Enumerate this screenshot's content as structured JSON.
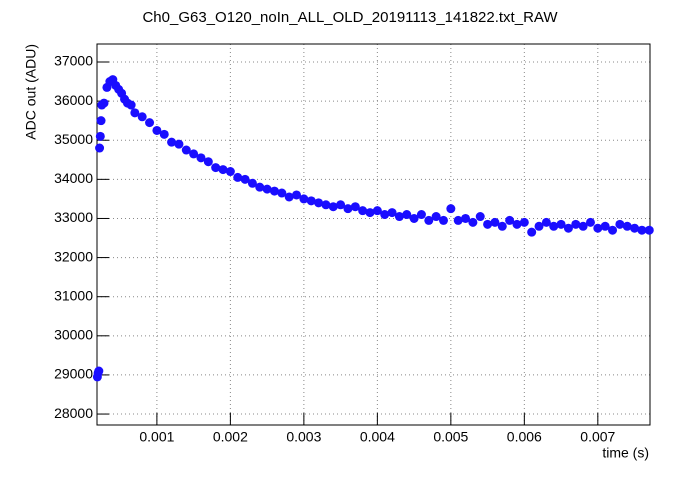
{
  "chart_data": {
    "type": "scatter",
    "title": "Ch0_G63_O120_noIn_ALL_OLD_20191113_141822.txt_RAW",
    "x_label": "time (s)",
    "y_label": "ADC out (ADU)",
    "xlim": [
      0.000185,
      0.00771
    ],
    "ylim": [
      27720,
      37460
    ],
    "xticks": [
      0.001,
      0.002,
      0.003,
      0.004,
      0.005,
      0.006,
      0.007
    ],
    "yticks": [
      28000,
      29000,
      30000,
      31000,
      32000,
      33000,
      34000,
      35000,
      36000,
      37000
    ],
    "grid": true,
    "color": "#1a0dff",
    "x": [
      0.00019,
      0.0002,
      0.00021,
      0.00022,
      0.00023,
      0.00024,
      0.00025,
      0.00028,
      0.00032,
      0.00036,
      0.0004,
      0.00044,
      0.00048,
      0.00052,
      0.00056,
      0.0006,
      0.00065,
      0.0007,
      0.0008,
      0.0009,
      0.001,
      0.0011,
      0.0012,
      0.0013,
      0.0014,
      0.0015,
      0.0016,
      0.0017,
      0.0018,
      0.0019,
      0.002,
      0.0021,
      0.0022,
      0.0023,
      0.0024,
      0.0025,
      0.0026,
      0.0027,
      0.0028,
      0.0029,
      0.003,
      0.0031,
      0.0032,
      0.0033,
      0.0034,
      0.0035,
      0.0036,
      0.0037,
      0.0038,
      0.0039,
      0.004,
      0.0041,
      0.0042,
      0.0043,
      0.0044,
      0.0045,
      0.0046,
      0.0047,
      0.0048,
      0.0049,
      0.005,
      0.0051,
      0.0052,
      0.0053,
      0.0054,
      0.0055,
      0.0056,
      0.0057,
      0.0058,
      0.0059,
      0.006,
      0.0061,
      0.0062,
      0.0063,
      0.0064,
      0.0065,
      0.0066,
      0.0067,
      0.0068,
      0.0069,
      0.007,
      0.0071,
      0.0072,
      0.0073,
      0.0074,
      0.0075,
      0.0076,
      0.0077
    ],
    "values": [
      28950,
      29050,
      29100,
      34800,
      35100,
      35500,
      35900,
      35950,
      36350,
      36500,
      36550,
      36400,
      36300,
      36200,
      36050,
      35950,
      35900,
      35700,
      35600,
      35450,
      35250,
      35150,
      34950,
      34900,
      34750,
      34650,
      34550,
      34450,
      34300,
      34250,
      34200,
      34050,
      34000,
      33900,
      33800,
      33750,
      33700,
      33650,
      33550,
      33600,
      33500,
      33450,
      33400,
      33350,
      33300,
      33350,
      33250,
      33300,
      33200,
      33150,
      33200,
      33100,
      33150,
      33050,
      33100,
      33000,
      33100,
      32950,
      33050,
      32950,
      33250,
      32950,
      33000,
      32900,
      33050,
      32850,
      32900,
      32800,
      32950,
      32850,
      32900,
      32650,
      32800,
      32900,
      32800,
      32850,
      32750,
      32850,
      32800,
      32900,
      32750,
      32800,
      32700,
      32850,
      32800,
      32750,
      32700,
      32700
    ]
  }
}
